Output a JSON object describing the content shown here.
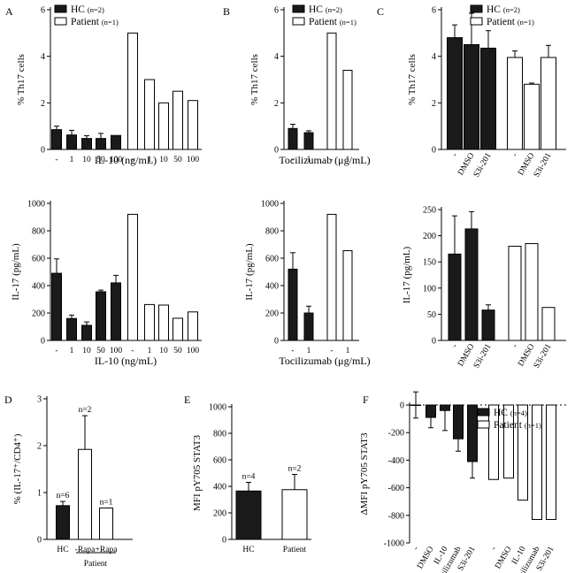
{
  "chart_data": [
    {
      "id": "A-top",
      "panel": "A",
      "type": "bar",
      "ylabel": "% Th17 cells",
      "xlabel": "IL-10 (ng/mL)",
      "ylim": [
        0,
        6
      ],
      "yticks": [
        0,
        2,
        4,
        6
      ],
      "groups": [
        {
          "name": "HC",
          "fill": "#1a1a1a",
          "categories": [
            "-",
            "1",
            "10",
            "50",
            "100"
          ],
          "values": [
            0.85,
            0.62,
            0.47,
            0.47,
            0.6
          ],
          "errors": [
            0.15,
            0.2,
            0.12,
            0.22,
            0.0
          ]
        },
        {
          "name": "Patient",
          "fill": "#ffffff",
          "categories": [
            "-",
            "1",
            "10",
            "50",
            "100"
          ],
          "values": [
            5.0,
            3.0,
            2.0,
            2.5,
            2.1
          ],
          "errors": [
            0,
            0,
            0,
            0,
            0
          ]
        }
      ],
      "legend": [
        {
          "label": "HC",
          "sub": "(n=2)",
          "fill": "#1a1a1a"
        },
        {
          "label": "Patient",
          "sub": "(n=1)",
          "fill": "#ffffff"
        }
      ]
    },
    {
      "id": "B-top",
      "panel": "B",
      "type": "bar",
      "ylabel": "% Th17 cells",
      "xlabel": "Tocilizumab (μg/mL)",
      "ylim": [
        0,
        6
      ],
      "yticks": [
        0,
        2,
        4,
        6
      ],
      "groups": [
        {
          "name": "HC",
          "fill": "#1a1a1a",
          "categories": [
            "-",
            "1"
          ],
          "values": [
            0.9,
            0.72
          ],
          "errors": [
            0.18,
            0.08
          ]
        },
        {
          "name": "Patient",
          "fill": "#ffffff",
          "categories": [
            "-",
            "1"
          ],
          "values": [
            5.0,
            3.4
          ],
          "errors": [
            0,
            0
          ]
        }
      ],
      "legend": [
        {
          "label": "HC",
          "sub": "(n=2)",
          "fill": "#1a1a1a"
        },
        {
          "label": "Patient",
          "sub": "(n=1)",
          "fill": "#ffffff"
        }
      ]
    },
    {
      "id": "C-top",
      "panel": "C",
      "type": "bar",
      "ylabel": "% Th17 cells",
      "xlabel": "",
      "ylim": [
        0,
        6
      ],
      "yticks": [
        0,
        2,
        4,
        6
      ],
      "groups": [
        {
          "name": "HC",
          "fill": "#1a1a1a",
          "categories": [
            "-",
            "DMSO",
            "S3i-201"
          ],
          "values": [
            4.8,
            4.5,
            4.35
          ],
          "errors": [
            0.55,
            1.35,
            0.75
          ]
        },
        {
          "name": "Patient",
          "fill": "#ffffff",
          "categories": [
            "-",
            "DMSO",
            "S3i-201"
          ],
          "values": [
            3.95,
            2.8,
            3.95
          ],
          "errors": [
            0.28,
            0.05,
            0.52
          ]
        }
      ],
      "legend": [
        {
          "label": "HC",
          "sub": "(n=2)",
          "fill": "#1a1a1a"
        },
        {
          "label": "Patient",
          "sub": "(n=1)",
          "fill": "#ffffff"
        }
      ]
    },
    {
      "id": "A-bottom",
      "panel": "",
      "type": "bar",
      "ylabel": "IL-17 (pg/mL)",
      "xlabel": "IL-10 (ng/mL)",
      "ylim": [
        0,
        1000
      ],
      "yticks": [
        0,
        200,
        400,
        600,
        800,
        1000
      ],
      "groups": [
        {
          "name": "HC",
          "fill": "#1a1a1a",
          "categories": [
            "-",
            "1",
            "10",
            "50",
            "100"
          ],
          "values": [
            490,
            160,
            110,
            355,
            420
          ],
          "errors": [
            105,
            25,
            25,
            12,
            55
          ]
        },
        {
          "name": "Patient",
          "fill": "#ffffff",
          "categories": [
            "-",
            "1",
            "10",
            "50",
            "100"
          ],
          "values": [
            920,
            262,
            258,
            162,
            208
          ],
          "errors": [
            0,
            0,
            0,
            0,
            0
          ]
        }
      ],
      "legend": []
    },
    {
      "id": "B-bottom",
      "panel": "",
      "type": "bar",
      "ylabel": "IL-17 (pg/mL)",
      "xlabel": "Tocilizumab (μg/mL)",
      "ylim": [
        0,
        1000
      ],
      "yticks": [
        0,
        200,
        400,
        600,
        800,
        1000
      ],
      "groups": [
        {
          "name": "HC",
          "fill": "#1a1a1a",
          "categories": [
            "-",
            "1"
          ],
          "values": [
            520,
            200
          ],
          "errors": [
            120,
            50
          ]
        },
        {
          "name": "Patient",
          "fill": "#ffffff",
          "categories": [
            "-",
            "1"
          ],
          "values": [
            920,
            655
          ],
          "errors": [
            0,
            0
          ]
        }
      ],
      "legend": []
    },
    {
      "id": "C-bottom",
      "panel": "",
      "type": "bar",
      "ylabel": "IL-17 (pg/mL)",
      "xlabel": "",
      "ylim": [
        0,
        250
      ],
      "yticks": [
        0,
        50,
        100,
        150,
        200,
        250
      ],
      "groups": [
        {
          "name": "HC",
          "fill": "#1a1a1a",
          "categories": [
            "-",
            "DMSO",
            "S3i-201"
          ],
          "values": [
            165,
            213,
            58
          ],
          "errors": [
            73,
            33,
            10
          ]
        },
        {
          "name": "Patient",
          "fill": "#ffffff",
          "categories": [
            "-",
            "DMSO",
            "S3i-201"
          ],
          "values": [
            180,
            185,
            63
          ],
          "errors": [
            0,
            0,
            0
          ]
        }
      ],
      "legend": []
    },
    {
      "id": "D",
      "panel": "D",
      "type": "bar",
      "ylabel": "% (IL-17⁺/CD4⁺)",
      "xlabel": "",
      "ylim": [
        0,
        3
      ],
      "yticks": [
        0,
        1,
        2,
        3
      ],
      "groups": [
        {
          "name": "HC",
          "fill": "#1a1a1a",
          "categories": [
            "HC"
          ],
          "values": [
            0.72
          ],
          "errors": [
            0.09
          ],
          "nlabels": [
            "n=6"
          ]
        },
        {
          "name": "Patient",
          "fill": "#ffffff",
          "categories": [
            "-Rapa",
            "+Rapa"
          ],
          "values": [
            1.92
          ],
          "errors": [
            0.72
          ],
          "nlabels": [
            "n=2",
            "n=1"
          ],
          "values_all": [
            1.92,
            0.67
          ],
          "errors_all": [
            0.72,
            0
          ]
        }
      ],
      "bracket_label": "Patient",
      "legend": []
    },
    {
      "id": "E",
      "panel": "E",
      "type": "bar",
      "ylabel": "MFI pY705 STAT3",
      "xlabel": "",
      "ylim": [
        0,
        1000
      ],
      "yticks": [
        0,
        200,
        400,
        600,
        800,
        1000
      ],
      "groups": [
        {
          "name": "HC",
          "fill": "#1a1a1a",
          "categories": [
            "HC"
          ],
          "values": [
            365
          ],
          "errors": [
            65
          ],
          "nlabels": [
            "n=4"
          ]
        },
        {
          "name": "Patient",
          "fill": "#ffffff",
          "categories": [
            "Patient"
          ],
          "values": [
            375
          ],
          "errors": [
            115
          ],
          "nlabels": [
            "n=2"
          ]
        }
      ],
      "legend": []
    },
    {
      "id": "F",
      "panel": "F",
      "type": "bar",
      "ylabel": "ΔMFI pY705 STAT3",
      "xlabel": "",
      "ylim": [
        -1000,
        0
      ],
      "yticks": [
        -1000,
        -800,
        -600,
        -400,
        -200,
        0
      ],
      "groups": [
        {
          "name": "HC",
          "fill": "#1a1a1a",
          "categories": [
            "-",
            "DMSO",
            "IL-10",
            "Tocilizumab",
            "S3i-201"
          ],
          "values": [
            0,
            -90,
            -40,
            -245,
            -410
          ],
          "errors": [
            95,
            75,
            145,
            90,
            120
          ]
        },
        {
          "name": "Patient",
          "fill": "#ffffff",
          "categories": [
            "-",
            "DMSO",
            "IL-10",
            "Tocilizumab",
            "S3i-201"
          ],
          "values": [
            -540,
            -530,
            -690,
            -830,
            -830
          ],
          "errors": [
            0,
            0,
            0,
            0,
            0
          ]
        }
      ],
      "legend": [
        {
          "label": "HC",
          "sub": "(n=4)",
          "fill": "#1a1a1a"
        },
        {
          "label": "Patient",
          "sub": "(n=1)",
          "fill": "#ffffff"
        }
      ]
    }
  ]
}
